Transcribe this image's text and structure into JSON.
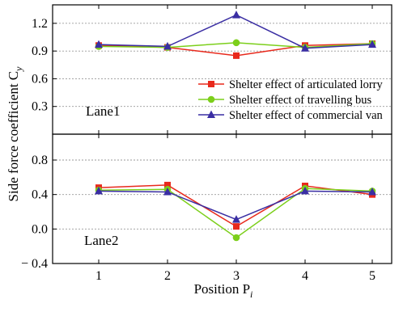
{
  "chart_data": {
    "type": "line",
    "xlabel": "Position P",
    "xlabel_subscript": "i",
    "ylabel": "Side force coefficient C",
    "ylabel_subscript": "y",
    "categories": [
      "1",
      "2",
      "3",
      "4",
      "5"
    ],
    "legend": {
      "location": "lower-right of top panel",
      "entries": [
        {
          "label": "Shelter effect of articulated lorry",
          "color": "#e8291c",
          "marker": "square"
        },
        {
          "label": "Shelter effect of travelling bus",
          "color": "#7ccf1b",
          "marker": "circle"
        },
        {
          "label": "Shelter effect of commercial van",
          "color": "#3a2ea3",
          "marker": "triangle"
        }
      ]
    },
    "panels": [
      {
        "label": "Lane1",
        "ylim": [
          0,
          1.4
        ],
        "yticks": [
          "0.3",
          "0.6",
          "0.9",
          "1.2"
        ],
        "ytick_values": [
          0.3,
          0.6,
          0.9,
          1.2
        ],
        "grid": "dashed horizontal at y ticks",
        "series": [
          {
            "name": "Shelter effect of articulated lorry",
            "values": [
              0.96,
              0.94,
              0.85,
              0.96,
              0.98
            ]
          },
          {
            "name": "Shelter effect of travelling bus",
            "values": [
              0.95,
              0.94,
              0.99,
              0.94,
              0.98
            ]
          },
          {
            "name": "Shelter effect of commercial van",
            "values": [
              0.97,
              0.95,
              1.29,
              0.93,
              0.97
            ]
          }
        ]
      },
      {
        "label": "Lane2",
        "ylim": [
          -0.4,
          1.1
        ],
        "yticks": [
          "− 0.4",
          "0.0",
          "0.4",
          "0.8"
        ],
        "ytick_values": [
          -0.4,
          0.0,
          0.4,
          0.8
        ],
        "grid": "dashed horizontal at y ticks",
        "series": [
          {
            "name": "Shelter effect of articulated lorry",
            "values": [
              0.48,
              0.51,
              0.03,
              0.5,
              0.4
            ]
          },
          {
            "name": "Shelter effect of travelling bus",
            "values": [
              0.45,
              0.46,
              -0.1,
              0.47,
              0.44
            ]
          },
          {
            "name": "Shelter effect of commercial van",
            "values": [
              0.44,
              0.43,
              0.11,
              0.44,
              0.43
            ]
          }
        ]
      }
    ]
  }
}
